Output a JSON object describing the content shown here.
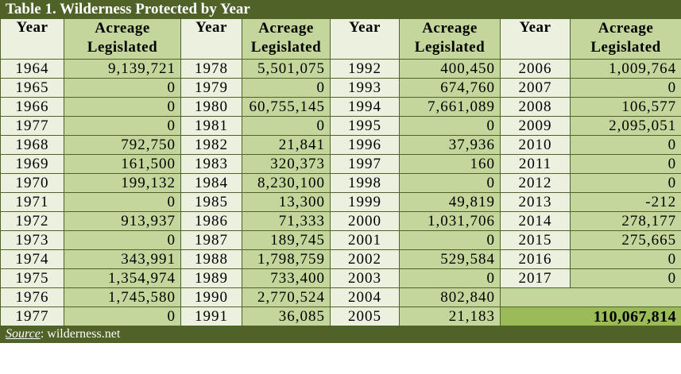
{
  "title": "Table 1. Wilderness Protected by Year",
  "headers": {
    "year": "Year",
    "acreage_line1": "Acreage",
    "acreage_line2": "Legislated"
  },
  "rows": [
    [
      [
        "1964",
        "9,139,721"
      ],
      [
        "1978",
        "5,501,075"
      ],
      [
        "1992",
        "400,450"
      ],
      [
        "2006",
        "1,009,764"
      ]
    ],
    [
      [
        "1965",
        "0"
      ],
      [
        "1979",
        "0"
      ],
      [
        "1993",
        "674,760"
      ],
      [
        "2007",
        "0"
      ]
    ],
    [
      [
        "1966",
        "0"
      ],
      [
        "1980",
        "60,755,145"
      ],
      [
        "1994",
        "7,661,089"
      ],
      [
        "2008",
        "106,577"
      ]
    ],
    [
      [
        "1977",
        "0"
      ],
      [
        "1981",
        "0"
      ],
      [
        "1995",
        "0"
      ],
      [
        "2009",
        "2,095,051"
      ]
    ],
    [
      [
        "1968",
        "792,750"
      ],
      [
        "1982",
        "21,841"
      ],
      [
        "1996",
        "37,936"
      ],
      [
        "2010",
        "0"
      ]
    ],
    [
      [
        "1969",
        "161,500"
      ],
      [
        "1983",
        "320,373"
      ],
      [
        "1997",
        "160"
      ],
      [
        "2011",
        "0"
      ]
    ],
    [
      [
        "1970",
        "199,132"
      ],
      [
        "1984",
        "8,230,100"
      ],
      [
        "1998",
        "0"
      ],
      [
        "2012",
        "0"
      ]
    ],
    [
      [
        "1971",
        "0"
      ],
      [
        "1985",
        "13,300"
      ],
      [
        "1999",
        "49,819"
      ],
      [
        "2013",
        "-212"
      ]
    ],
    [
      [
        "1972",
        "913,937"
      ],
      [
        "1986",
        "71,333"
      ],
      [
        "2000",
        "1,031,706"
      ],
      [
        "2014",
        "278,177"
      ]
    ],
    [
      [
        "1973",
        "0"
      ],
      [
        "1987",
        "189,745"
      ],
      [
        "2001",
        "0"
      ],
      [
        "2015",
        "275,665"
      ]
    ],
    [
      [
        "1974",
        "343,991"
      ],
      [
        "1988",
        "1,798,759"
      ],
      [
        "2002",
        "529,584"
      ],
      [
        "2016",
        "0"
      ]
    ],
    [
      [
        "1975",
        "1,354,974"
      ],
      [
        "1989",
        "733,400"
      ],
      [
        "2003",
        "0"
      ],
      [
        "2017",
        "0"
      ]
    ],
    [
      [
        "1976",
        "1,745,580"
      ],
      [
        "1990",
        "2,770,524"
      ],
      [
        "2004",
        "802,840"
      ],
      null
    ],
    [
      [
        "1977",
        "0"
      ],
      [
        "1991",
        "36,085"
      ],
      [
        "2005",
        "21,183"
      ],
      null
    ]
  ],
  "total": "110,067,814",
  "source_label": "Source",
  "source_text": ": wilderness.net"
}
